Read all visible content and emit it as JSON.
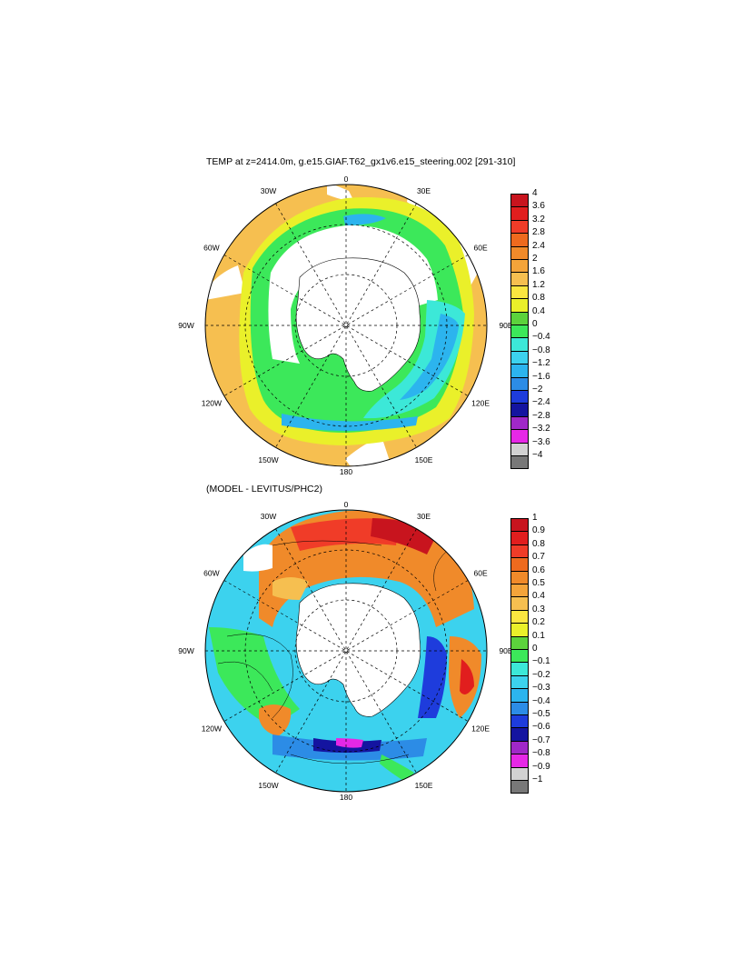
{
  "panels": [
    {
      "title": "TEMP at z=2414.0m, g.e15.GIAF.T62_gx1v6.e15_steering.002 [291-310]",
      "colorbar": {
        "labels": [
          "4",
          "3.6",
          "3.2",
          "2.8",
          "2.4",
          "2",
          "1.6",
          "1.2",
          "0.8",
          "0.4",
          "0",
          "−0.4",
          "−0.8",
          "−1.2",
          "−1.6",
          "−2",
          "−2.4",
          "−2.8",
          "−3.2",
          "−3.6",
          "−4"
        ],
        "colors": [
          "#c8141e",
          "#e11e1e",
          "#f03c28",
          "#ee6a1e",
          "#f08a2a",
          "#f4a43a",
          "#f6bf50",
          "#fbe640",
          "#eaf02a",
          "#5cd23c",
          "#3ce85a",
          "#3ce8d8",
          "#3cd2ee",
          "#2cb4ee",
          "#2c8ce6",
          "#1e3cdc",
          "#1414a0",
          "#a028c8",
          "#e628e6",
          "#d2d2d2",
          "#787878"
        ]
      },
      "lon_labels": [
        "0",
        "30E",
        "60E",
        "90E",
        "120E",
        "150E",
        "180",
        "150W",
        "120W",
        "90W",
        "60W",
        "30W"
      ]
    },
    {
      "title": "(MODEL - LEVITUS/PHC2)",
      "colorbar": {
        "labels": [
          "1",
          "0.9",
          "0.8",
          "0.7",
          "0.6",
          "0.5",
          "0.4",
          "0.3",
          "0.2",
          "0.1",
          "0",
          "−0.1",
          "−0.2",
          "−0.3",
          "−0.4",
          "−0.5",
          "−0.6",
          "−0.7",
          "−0.8",
          "−0.9",
          "−1"
        ],
        "colors": [
          "#c8141e",
          "#e11e1e",
          "#f03c28",
          "#ee6a1e",
          "#f08a2a",
          "#f4a43a",
          "#f6bf50",
          "#fbe640",
          "#eaf02a",
          "#5cd23c",
          "#3ce85a",
          "#3ce8d8",
          "#3cd2ee",
          "#2cb4ee",
          "#2c8ce6",
          "#1e3cdc",
          "#1414a0",
          "#a028c8",
          "#e628e6",
          "#d2d2d2",
          "#787878"
        ]
      },
      "lon_labels": [
        "0",
        "30E",
        "60E",
        "90E",
        "120E",
        "150E",
        "180",
        "150W",
        "120W",
        "90W",
        "60W",
        "30W"
      ]
    }
  ]
}
